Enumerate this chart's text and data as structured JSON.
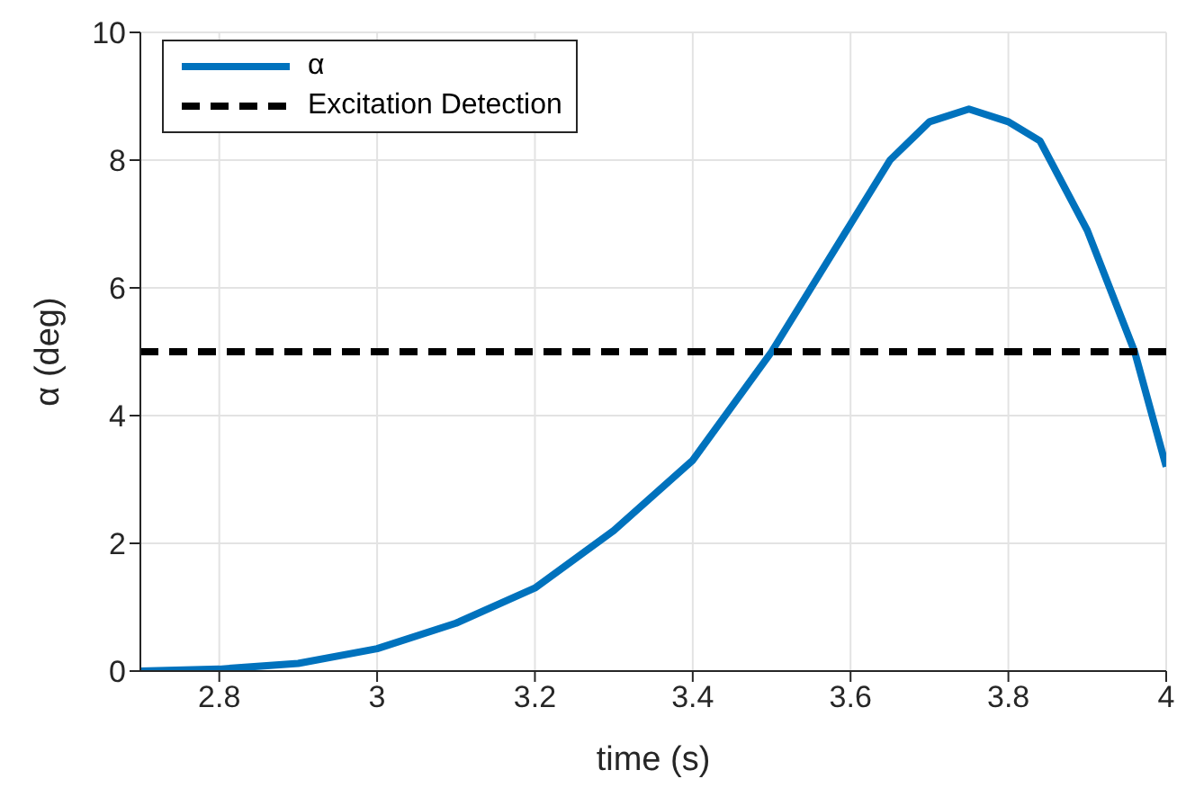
{
  "chart_data": {
    "type": "line",
    "xlabel": "time (s)",
    "ylabel": "α (deg)",
    "xlim": [
      2.7,
      4
    ],
    "xticks": [
      2.8,
      3,
      3.2,
      3.4,
      3.6,
      3.8,
      4
    ],
    "ylim": [
      0,
      10
    ],
    "yticks": [
      0,
      2,
      4,
      6,
      8,
      10
    ],
    "grid": true,
    "legend": "top left",
    "marker": "none",
    "series": [
      {
        "name": "α",
        "color": "#0072bd",
        "line_style": "solid",
        "x": [
          2.7,
          2.8,
          2.9,
          3.0,
          3.1,
          3.2,
          3.3,
          3.4,
          3.5,
          3.55,
          3.6,
          3.65,
          3.7,
          3.75,
          3.8,
          3.84,
          3.9,
          3.96,
          4.0
        ],
        "values": [
          0,
          0.03,
          0.12,
          0.35,
          0.75,
          1.3,
          2.2,
          3.3,
          5.0,
          6.0,
          7.0,
          8.0,
          8.6,
          8.8,
          8.6,
          8.3,
          6.9,
          5.0,
          3.2
        ]
      },
      {
        "name": "Excitation Detection",
        "color": "#000000",
        "line_style": "dashed",
        "x": [
          2.7,
          4.0
        ],
        "values": [
          5,
          5
        ]
      }
    ]
  }
}
